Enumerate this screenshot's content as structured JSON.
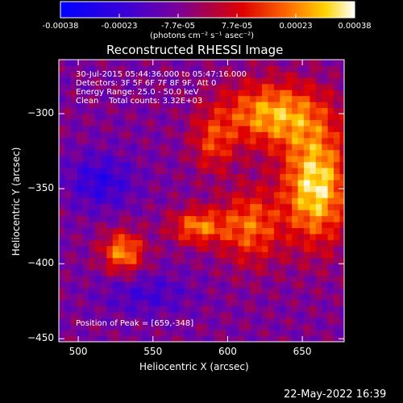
{
  "colorbar": {
    "tick_labels": [
      "-0.00038",
      "-0.00023",
      "-7.7e-05",
      "7.7e-05",
      "0.00023",
      "0.00038"
    ],
    "unit_label": "(photons cm⁻² s⁻¹ asec⁻²)",
    "range": [
      -0.00038,
      0.00038
    ]
  },
  "chart_data": {
    "type": "heatmap",
    "title": "Reconstructed RHESSI Image",
    "xlabel": "Heliocentric X (arcsec)",
    "ylabel": "Heliocentric Y (arcsec)",
    "xlim": [
      487,
      678
    ],
    "ylim": [
      -452,
      -264
    ],
    "x_ticks": [
      500,
      550,
      600,
      650
    ],
    "y_ticks": [
      -300,
      -350,
      -400,
      -450
    ],
    "grid": false,
    "peak_position": [
      659,
      -348
    ],
    "annotations": {
      "time_range": "30-Jul-2015 05:44:36.000 to 05:47:16.000",
      "detectors": "Detectors: 3F 5F 6F 7F 8F 9F, Att 0",
      "energy_range": "Energy Range: 25.0 - 50.0 keV",
      "clean_counts": "Clean    Total counts: 3.32E+03",
      "peak": "Position of Peak = [659,-348]"
    }
  },
  "footer": {
    "timestamp": "22-May-2022 16:39"
  }
}
